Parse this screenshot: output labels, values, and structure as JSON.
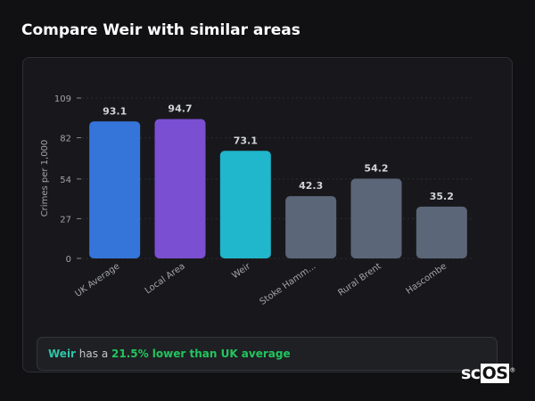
{
  "title": "Compare Weir with similar areas",
  "chart_data": {
    "type": "bar",
    "categories": [
      "UK Average",
      "Local Area",
      "Weir",
      "Stoke Hamm...",
      "Rural Brent",
      "Hascombe"
    ],
    "values": [
      93.1,
      94.7,
      73.1,
      42.3,
      54.2,
      35.2
    ],
    "value_labels": [
      "93.1",
      "94.7",
      "73.1",
      "42.3",
      "54.2",
      "35.2"
    ],
    "colors": [
      "#3575d9",
      "#7b4fd1",
      "#20b6cc",
      "#5b6678",
      "#5b6678",
      "#5b6678"
    ],
    "ylabel": "Crimes per 1,000",
    "xlabel": "",
    "yticks": [
      0,
      27,
      54,
      82,
      109
    ],
    "ylim": [
      0,
      109
    ],
    "grid": true
  },
  "summary": {
    "area": "Weir",
    "middle": " has a ",
    "highlight": "21.5% lower than UK average",
    "area_color": "#2ec4a6",
    "highlight_color": "#22c55e"
  },
  "watermark": {
    "prefix": "sc",
    "boxed": "OS",
    "mark": "®"
  }
}
